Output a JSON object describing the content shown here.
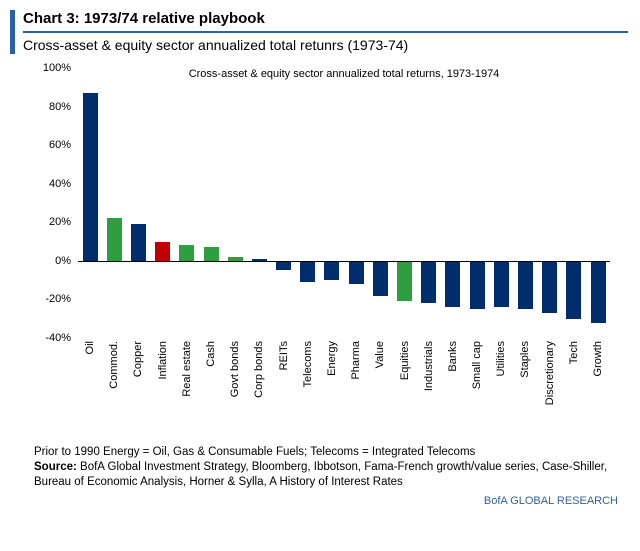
{
  "header": {
    "title": "Chart 3: 1973/74 relative playbook",
    "subtitle": "Cross-asset & equity sector annualized total retunrs (1973-74)"
  },
  "chart_data": {
    "type": "bar",
    "title": "Cross-asset & equity sector annualized total returns, 1973-1974",
    "categories": [
      "Oil",
      "Commod.",
      "Copper",
      "Inflation",
      "Real estate",
      "Cash",
      "Govt bonds",
      "Corp bonds",
      "REITs",
      "Telecoms",
      "Energy",
      "Pharma",
      "Value",
      "Equities",
      "Industrials",
      "Banks",
      "Small cap",
      "Utilities",
      "Staples",
      "Discretionary",
      "Tech",
      "Growth"
    ],
    "values": [
      87,
      22,
      19,
      10,
      8,
      7,
      2,
      1,
      -5,
      -11,
      -10,
      -12,
      -18,
      -21,
      -22,
      -24,
      -25,
      -24,
      -25,
      -27,
      -30,
      -32
    ],
    "colors": [
      "navy",
      "green",
      "navy",
      "red",
      "green",
      "green",
      "green",
      "navy",
      "navy",
      "navy",
      "navy",
      "navy",
      "navy",
      "green",
      "navy",
      "navy",
      "navy",
      "navy",
      "navy",
      "navy",
      "navy",
      "navy"
    ],
    "palette": {
      "navy": "#002e6d",
      "green": "#2f9e41",
      "red": "#c00000"
    },
    "ylim": [
      -40,
      100
    ],
    "yticks": [
      100,
      80,
      60,
      40,
      20,
      0,
      -20,
      -40
    ],
    "ytick_suffix": "%",
    "xlabel": "",
    "ylabel": "",
    "grid": false,
    "legend": "none"
  },
  "footer": {
    "note": "Prior to 1990 Energy = Oil, Gas & Consumable Fuels; Telecoms = Integrated Telecoms",
    "source_label": "Source:",
    "source_text": " BofA Global Investment Strategy, Bloomberg, Ibbotson,  Fama-French growth/value series, Case-Shiller, Bureau of Economic  Analysis, Horner & Sylla, A History of Interest Rates",
    "brand": "BofA GLOBAL RESEARCH"
  }
}
